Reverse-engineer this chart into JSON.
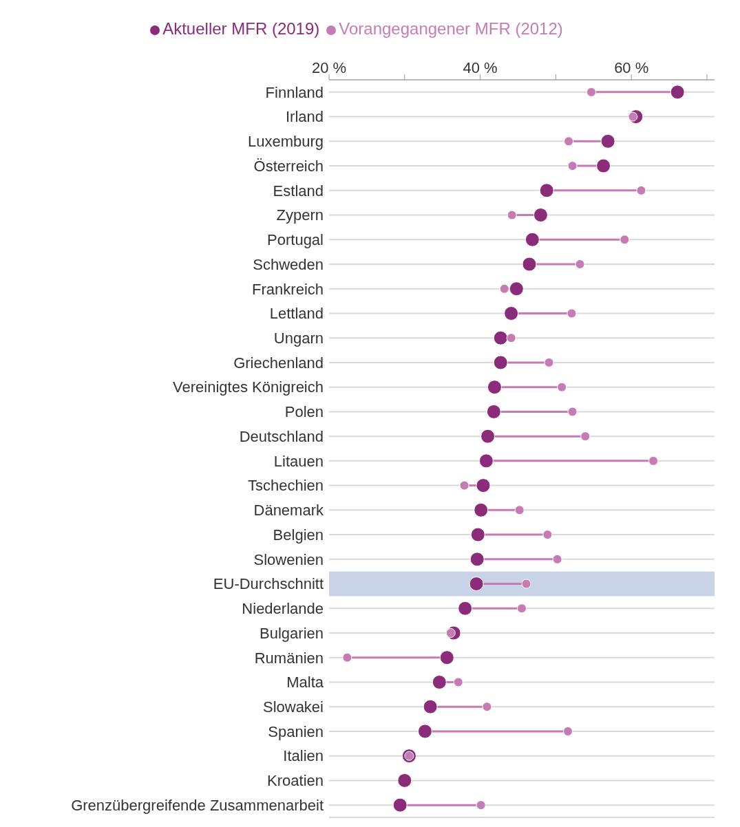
{
  "chart_data": {
    "type": "scatter",
    "orientation": "horizontal",
    "categories": [
      "Finnland",
      "Irland",
      "Luxemburg",
      "Österreich",
      "Estland",
      "Zypern",
      "Portugal",
      "Schweden",
      "Frankreich",
      "Lettland",
      "Ungarn",
      "Griechenland",
      "Vereinigtes Königreich",
      "Polen",
      "Deutschland",
      "Litauen",
      "Tschechien",
      "Dänemark",
      "Belgien",
      "Slowenien",
      "EU-Durchschnitt",
      "Niederlande",
      "Bulgarien",
      "Rumänien",
      "Malta",
      "Slowakei",
      "Spanien",
      "Italien",
      "Kroatien",
      "Grenzübergreifende Zusammenarbeit"
    ],
    "series": [
      {
        "name": "Aktueller MFR (2019)",
        "color": "#8b2c7a",
        "values": [
          66.1,
          60.6,
          56.9,
          56.3,
          48.8,
          48.0,
          46.9,
          46.5,
          44.8,
          44.1,
          42.7,
          42.7,
          41.9,
          41.8,
          41.0,
          40.8,
          40.4,
          40.1,
          39.7,
          39.6,
          39.5,
          38.0,
          36.5,
          35.6,
          34.6,
          33.4,
          32.7,
          30.6,
          30.0,
          29.4
        ]
      },
      {
        "name": "Vorangegangener MFR (2012)",
        "color": "#c77bb4",
        "values": [
          54.7,
          60.2,
          51.7,
          52.2,
          61.3,
          44.2,
          59.1,
          53.2,
          43.2,
          52.1,
          44.1,
          49.1,
          50.8,
          52.2,
          53.9,
          62.9,
          37.9,
          45.2,
          48.9,
          50.2,
          46.1,
          45.5,
          36.1,
          22.4,
          37.1,
          40.9,
          51.6,
          30.6,
          null,
          40.1
        ]
      }
    ],
    "xlim": [
      20,
      71
    ],
    "xticks": [
      {
        "value": 20,
        "label": "20 %"
      },
      {
        "value": 30,
        "label": null
      },
      {
        "value": 40,
        "label": "40 %"
      },
      {
        "value": 50,
        "label": null
      },
      {
        "value": 60,
        "label": "60 %"
      },
      {
        "value": 70,
        "label": null
      }
    ],
    "bands": [
      {
        "axis": "y",
        "from": "EU-Durchschnitt",
        "to": "EU-Durchschnitt",
        "color": "#c8d3e8"
      }
    ],
    "grid": "y",
    "legend": "top",
    "marker": "circle"
  }
}
